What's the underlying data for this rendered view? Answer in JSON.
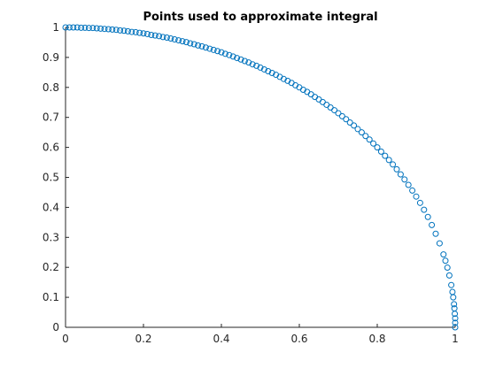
{
  "chart_data": {
    "type": "scatter",
    "title": "Points used to approximate integral",
    "xlabel": "",
    "ylabel": "",
    "xlim": [
      0,
      1
    ],
    "ylim": [
      0,
      1
    ],
    "xticks": [
      0,
      0.2,
      0.4,
      0.6,
      0.8,
      1
    ],
    "xtick_labels": [
      "0",
      "0.2",
      "0.4",
      "0.6",
      "0.8",
      "1"
    ],
    "yticks": [
      0,
      0.1,
      0.2,
      0.3,
      0.4,
      0.5,
      0.6,
      0.7,
      0.8,
      0.9,
      1
    ],
    "ytick_labels": [
      "0",
      "0.1",
      "0.2",
      "0.3",
      "0.4",
      "0.5",
      "0.6",
      "0.7",
      "0.8",
      "0.9",
      "1"
    ],
    "grid": false,
    "marker": "open-circle",
    "color": "#0072BD",
    "curve": "y = sqrt(1 - x^2)",
    "series": [
      {
        "x": [
          0.0,
          0.01,
          0.02,
          0.03,
          0.04,
          0.05,
          0.06,
          0.07,
          0.08,
          0.09,
          0.1,
          0.11,
          0.12,
          0.13,
          0.14,
          0.15,
          0.16,
          0.17,
          0.18,
          0.19,
          0.2,
          0.21,
          0.22,
          0.23,
          0.24,
          0.25,
          0.26,
          0.27,
          0.28,
          0.29,
          0.3,
          0.31,
          0.32,
          0.33,
          0.34,
          0.35,
          0.36,
          0.37,
          0.38,
          0.39,
          0.4,
          0.41,
          0.42,
          0.43,
          0.44,
          0.45,
          0.46,
          0.47,
          0.48,
          0.49,
          0.5,
          0.51,
          0.52,
          0.53,
          0.54,
          0.55,
          0.56,
          0.57,
          0.58,
          0.59,
          0.6,
          0.61,
          0.62,
          0.63,
          0.64,
          0.65,
          0.66,
          0.67,
          0.68,
          0.69,
          0.7,
          0.71,
          0.72,
          0.73,
          0.74,
          0.75,
          0.76,
          0.77,
          0.78,
          0.79,
          0.8,
          0.81,
          0.82,
          0.83,
          0.84,
          0.85,
          0.86,
          0.87,
          0.88,
          0.89,
          0.9,
          0.91,
          0.92,
          0.93,
          0.94,
          0.95,
          0.96,
          0.97,
          0.975,
          0.98,
          0.985,
          0.99,
          0.993,
          0.995,
          0.997,
          0.998,
          0.999,
          1.0,
          1.0,
          1.0
        ],
        "y": [
          1.0,
          1.0,
          1.0,
          1.0,
          0.999,
          0.999,
          0.998,
          0.998,
          0.997,
          0.996,
          0.995,
          0.994,
          0.993,
          0.992,
          0.99,
          0.989,
          0.987,
          0.985,
          0.984,
          0.982,
          0.98,
          0.978,
          0.975,
          0.973,
          0.971,
          0.968,
          0.966,
          0.963,
          0.96,
          0.957,
          0.954,
          0.951,
          0.947,
          0.944,
          0.94,
          0.937,
          0.933,
          0.929,
          0.925,
          0.921,
          0.917,
          0.912,
          0.908,
          0.903,
          0.898,
          0.893,
          0.888,
          0.883,
          0.877,
          0.872,
          0.866,
          0.86,
          0.854,
          0.848,
          0.842,
          0.835,
          0.828,
          0.822,
          0.815,
          0.807,
          0.8,
          0.792,
          0.785,
          0.777,
          0.768,
          0.76,
          0.751,
          0.742,
          0.733,
          0.724,
          0.714,
          0.704,
          0.694,
          0.683,
          0.673,
          0.661,
          0.65,
          0.638,
          0.626,
          0.613,
          0.6,
          0.586,
          0.572,
          0.558,
          0.543,
          0.527,
          0.51,
          0.493,
          0.475,
          0.456,
          0.436,
          0.415,
          0.392,
          0.368,
          0.341,
          0.312,
          0.28,
          0.243,
          0.222,
          0.199,
          0.173,
          0.141,
          0.118,
          0.1,
          0.077,
          0.063,
          0.045,
          0.03,
          0.015,
          0.0
        ]
      }
    ]
  }
}
